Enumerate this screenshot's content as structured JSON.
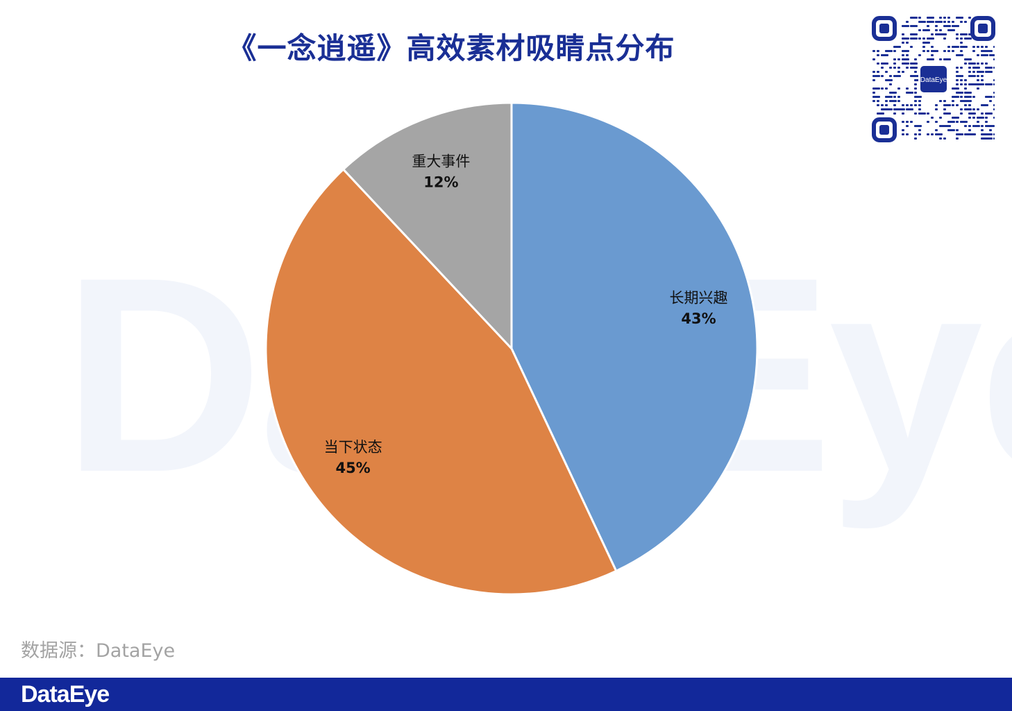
{
  "title": "《一念逍遥》高效素材吸睛点分布",
  "watermark": "DataEye",
  "qr_badge": "DataEye",
  "source": "数据源：DataEye",
  "footer_logo": "DataEye",
  "chart_data": {
    "type": "pie",
    "title": "《一念逍遥》高效素材吸睛点分布",
    "slices": [
      {
        "label": "长期兴趣",
        "value": 43,
        "display": "43%",
        "color": "#6a9ad0"
      },
      {
        "label": "当下状态",
        "value": 45,
        "display": "45%",
        "color": "#de8345"
      },
      {
        "label": "重大事件",
        "value": 12,
        "display": "12%",
        "color": "#a5a5a5"
      }
    ],
    "start": "12 o'clock",
    "direction": "clockwise",
    "legend": "none"
  }
}
